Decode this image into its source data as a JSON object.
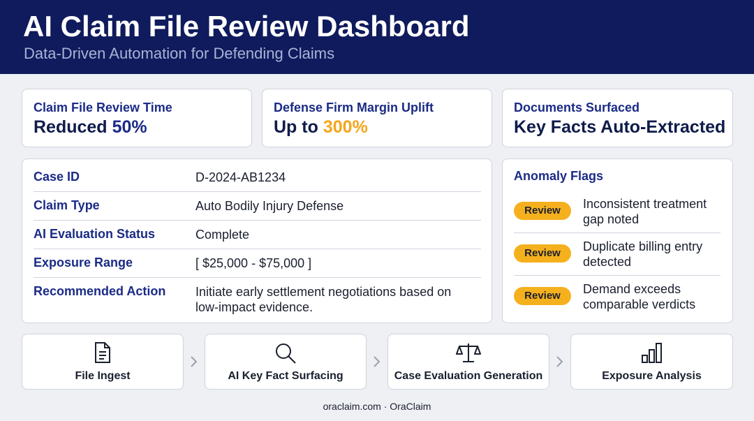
{
  "header": {
    "title": "AI Claim File Review Dashboard",
    "subtitle": "Data-Driven Automation for Defending Claims"
  },
  "metrics": [
    {
      "label": "Claim File Review Time",
      "value_text": "Reduced",
      "value_highlight": "50%"
    },
    {
      "label": "Defense Firm Margin Uplift",
      "value_text": "Up to",
      "value_highlight": "300%"
    },
    {
      "label": "Documents Surfaced",
      "value_text": "Key Facts Auto-Extracted"
    }
  ],
  "case_details": {
    "rows": [
      [
        "Case ID",
        "D-2024-AB1234"
      ],
      [
        "Claim Type",
        "Auto Bodily Injury Defense"
      ],
      [
        "AI Evaluation Status",
        "Complete"
      ],
      [
        "Exposure Range",
        "[ $25,000 - $75,000 ]"
      ],
      [
        "Recommended Action",
        "Initiate early settlement negotiations based on low-impact evidence."
      ]
    ]
  },
  "anomaly_flags": {
    "title": "Anomaly Flags",
    "items": [
      {
        "badge": "Review",
        "text": "Inconsistent treatment gap noted"
      },
      {
        "badge": "Review",
        "text": "Duplicate billing entry detected"
      },
      {
        "badge": "Review",
        "text": "Demand exceeds comparable verdicts"
      }
    ]
  },
  "workflow": {
    "steps": [
      "File Ingest",
      "AI Key Fact Surfacing",
      "Case Evaluation Generation",
      "Exposure Analysis"
    ]
  },
  "footer": {
    "text": "oraclaim.com · OraClaim"
  }
}
